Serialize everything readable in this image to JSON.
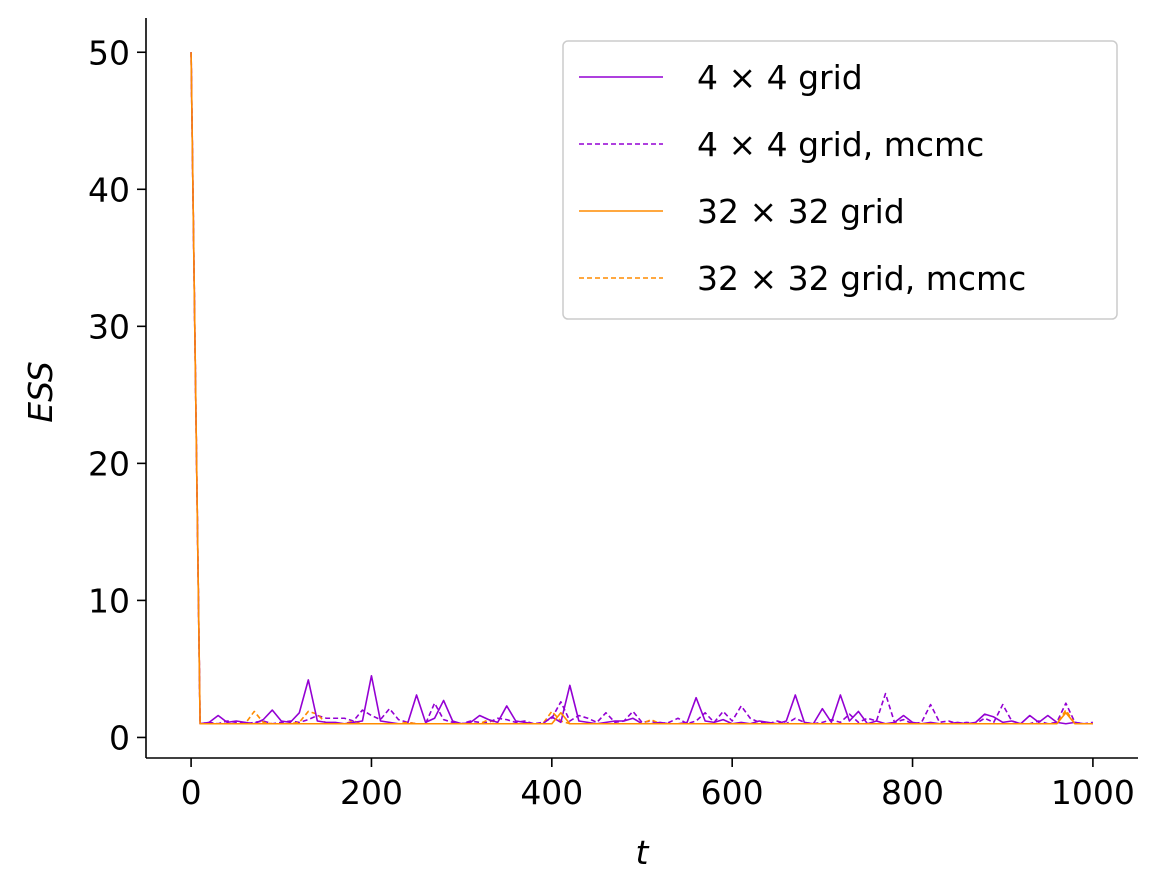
{
  "chart_data": {
    "type": "line",
    "xlabel": "t",
    "ylabel": "ESS",
    "xlim": [
      -50,
      1050
    ],
    "ylim": [
      -1.5,
      52.5
    ],
    "xticks": [
      0,
      200,
      400,
      600,
      800,
      1000
    ],
    "yticks": [
      0,
      10,
      20,
      30,
      40,
      50
    ],
    "grid": false,
    "legend_position": "top-right",
    "x": [
      0,
      10,
      20,
      30,
      40,
      50,
      60,
      70,
      80,
      90,
      100,
      110,
      120,
      130,
      140,
      150,
      160,
      170,
      180,
      190,
      200,
      210,
      220,
      230,
      240,
      250,
      260,
      270,
      280,
      290,
      300,
      310,
      320,
      330,
      340,
      350,
      360,
      370,
      380,
      390,
      400,
      410,
      420,
      430,
      440,
      450,
      460,
      470,
      480,
      490,
      500,
      510,
      520,
      530,
      540,
      550,
      560,
      570,
      580,
      590,
      600,
      610,
      620,
      630,
      640,
      650,
      660,
      670,
      680,
      690,
      700,
      710,
      720,
      730,
      740,
      750,
      760,
      770,
      780,
      790,
      800,
      810,
      820,
      830,
      840,
      850,
      860,
      870,
      880,
      890,
      900,
      910,
      920,
      930,
      940,
      950,
      960,
      970,
      980,
      990,
      1000
    ],
    "series": [
      {
        "name": "4 × 4 grid",
        "color": "#9400d3",
        "dash": "solid",
        "values": [
          50,
          1.0,
          1.1,
          1.6,
          1.1,
          1.2,
          1.1,
          1.0,
          1.3,
          2.0,
          1.2,
          1.1,
          1.8,
          4.2,
          1.2,
          1.1,
          1.1,
          1.0,
          1.1,
          1.2,
          4.5,
          1.2,
          1.1,
          1.0,
          1.0,
          3.1,
          1.1,
          1.4,
          2.7,
          1.2,
          1.0,
          1.1,
          1.6,
          1.3,
          1.1,
          2.3,
          1.2,
          1.1,
          1.0,
          1.0,
          1.5,
          1.1,
          3.8,
          1.2,
          1.1,
          1.0,
          1.1,
          1.2,
          1.2,
          1.4,
          1.0,
          1.0,
          1.1,
          1.0,
          1.0,
          1.1,
          2.9,
          1.2,
          1.1,
          1.3,
          1.0,
          1.1,
          1.0,
          1.2,
          1.1,
          1.0,
          1.2,
          3.1,
          1.1,
          1.0,
          2.1,
          1.1,
          3.1,
          1.2,
          1.9,
          1.0,
          1.2,
          1.0,
          1.1,
          1.6,
          1.1,
          1.0,
          1.1,
          1.0,
          1.0,
          1.1,
          1.0,
          1.1,
          1.7,
          1.5,
          1.1,
          1.2,
          1.0,
          1.6,
          1.1,
          1.6,
          1.1,
          1.0,
          1.1,
          1.0,
          1.0
        ]
      },
      {
        "name": "4 × 4 grid, mcmc",
        "color": "#9400d3",
        "dash": "dashed",
        "values": [
          50,
          1.0,
          1.1,
          1.0,
          1.2,
          1.1,
          1.0,
          1.1,
          1.2,
          1.0,
          1.1,
          1.2,
          1.1,
          1.3,
          1.6,
          1.4,
          1.4,
          1.4,
          1.2,
          2.0,
          1.6,
          1.3,
          2.1,
          1.3,
          1.1,
          1.0,
          1.0,
          2.5,
          1.3,
          1.1,
          1.0,
          1.2,
          1.1,
          1.1,
          1.4,
          1.3,
          1.1,
          1.2,
          1.0,
          1.1,
          1.4,
          2.6,
          1.2,
          1.6,
          1.4,
          1.1,
          1.8,
          1.1,
          1.2,
          1.9,
          1.1,
          1.2,
          1.0,
          1.1,
          1.4,
          1.0,
          1.2,
          1.8,
          1.1,
          1.9,
          1.2,
          2.3,
          1.4,
          1.1,
          1.0,
          1.2,
          1.0,
          1.4,
          1.1,
          1.0,
          1.1,
          1.3,
          1.1,
          1.7,
          1.1,
          1.4,
          1.2,
          3.2,
          1.1,
          1.3,
          1.0,
          1.1,
          2.4,
          1.1,
          1.2,
          1.0,
          1.1,
          1.0,
          1.4,
          1.1,
          2.4,
          1.2,
          1.0,
          1.0,
          1.2,
          1.0,
          1.1,
          2.5,
          1.1,
          1.0,
          1.1
        ]
      },
      {
        "name": "32 × 32 grid",
        "color": "#ff8c00",
        "dash": "solid",
        "values": [
          50,
          1.0,
          1.0,
          1.0,
          1.0,
          1.0,
          1.0,
          1.0,
          1.0,
          1.0,
          1.0,
          1.0,
          1.0,
          1.0,
          1.0,
          1.0,
          1.0,
          1.0,
          1.0,
          1.0,
          1.0,
          1.0,
          1.0,
          1.0,
          1.0,
          1.0,
          1.0,
          1.0,
          1.0,
          1.0,
          1.0,
          1.0,
          1.0,
          1.0,
          1.0,
          1.0,
          1.0,
          1.0,
          1.0,
          1.0,
          1.0,
          1.8,
          1.0,
          1.0,
          1.0,
          1.0,
          1.0,
          1.0,
          1.0,
          1.0,
          1.0,
          1.0,
          1.0,
          1.0,
          1.0,
          1.0,
          1.0,
          1.0,
          1.0,
          1.0,
          1.0,
          1.0,
          1.0,
          1.0,
          1.0,
          1.0,
          1.0,
          1.0,
          1.0,
          1.0,
          1.0,
          1.0,
          1.0,
          1.0,
          1.0,
          1.0,
          1.0,
          1.0,
          1.0,
          1.0,
          1.0,
          1.0,
          1.0,
          1.0,
          1.0,
          1.0,
          1.0,
          1.0,
          1.0,
          1.0,
          1.0,
          1.0,
          1.0,
          1.0,
          1.0,
          1.0,
          1.0,
          1.8,
          1.0,
          1.0,
          1.0
        ]
      },
      {
        "name": "32 × 32 grid, mcmc",
        "color": "#ff8c00",
        "dash": "dashed",
        "values": [
          50,
          1.0,
          1.0,
          1.0,
          1.0,
          1.0,
          1.0,
          1.9,
          1.1,
          1.0,
          1.0,
          1.0,
          1.1,
          1.9,
          1.7,
          1.0,
          1.0,
          1.0,
          1.2,
          1.0,
          1.0,
          1.0,
          1.0,
          1.0,
          1.1,
          1.0,
          1.0,
          1.0,
          1.0,
          1.0,
          1.0,
          1.0,
          1.0,
          1.3,
          1.0,
          1.0,
          1.0,
          1.0,
          1.0,
          1.0,
          1.9,
          1.2,
          1.0,
          1.0,
          1.0,
          1.0,
          1.0,
          1.0,
          1.0,
          1.0,
          1.0,
          1.3,
          1.0,
          1.0,
          1.0,
          1.0,
          1.0,
          1.0,
          1.0,
          1.0,
          1.0,
          1.0,
          1.0,
          1.0,
          1.0,
          1.0,
          1.0,
          1.0,
          1.0,
          1.0,
          1.0,
          1.0,
          1.0,
          1.0,
          1.0,
          1.0,
          1.0,
          1.0,
          1.0,
          1.0,
          1.0,
          1.0,
          1.0,
          1.0,
          1.0,
          1.0,
          1.0,
          1.0,
          1.0,
          1.0,
          1.0,
          1.0,
          1.0,
          1.0,
          1.0,
          1.0,
          1.0,
          2.0,
          1.0,
          1.0,
          1.0
        ]
      }
    ]
  }
}
